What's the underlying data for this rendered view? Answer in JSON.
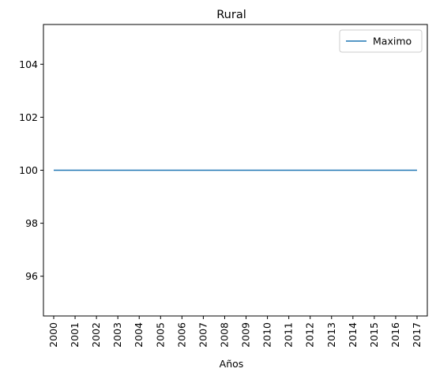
{
  "chart_data": {
    "type": "line",
    "title": "Rural",
    "xlabel": "Años",
    "ylabel": "",
    "x": [
      "2000",
      "2001",
      "2002",
      "2003",
      "2004",
      "2005",
      "2006",
      "2007",
      "2008",
      "2009",
      "2010",
      "2011",
      "2012",
      "2013",
      "2014",
      "2015",
      "2016",
      "2017"
    ],
    "series": [
      {
        "name": "Maximo",
        "color": "#1f77b4",
        "values": [
          100,
          100,
          100,
          100,
          100,
          100,
          100,
          100,
          100,
          100,
          100,
          100,
          100,
          100,
          100,
          100,
          100,
          100
        ]
      }
    ],
    "ylim": [
      94.5,
      105.5
    ],
    "yticks": [
      96,
      98,
      100,
      102,
      104
    ],
    "ytick_labels": [
      "96",
      "98",
      "100",
      "102",
      "104"
    ],
    "legend_position": "top-right",
    "grid": false
  }
}
